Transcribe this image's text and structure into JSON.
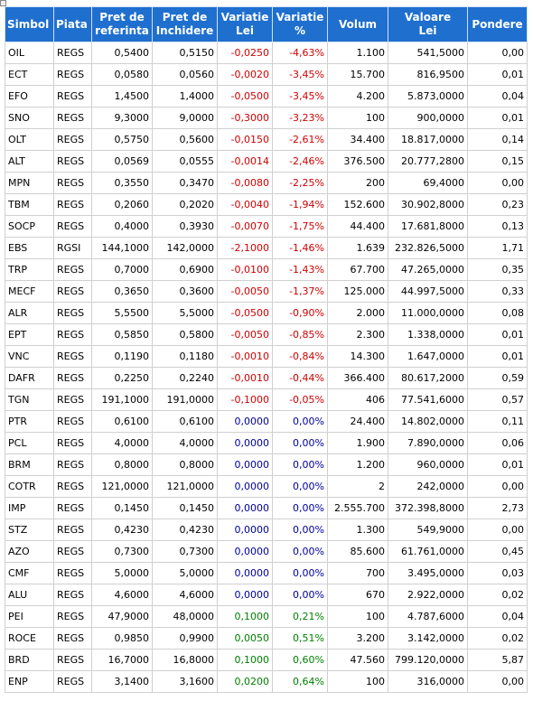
{
  "header": [
    [
      "Simbol"
    ],
    [
      "Piata"
    ],
    [
      "Pret de",
      "referinta"
    ],
    [
      "Pret de",
      "Inchidere"
    ],
    [
      "Variatie",
      "Lei"
    ],
    [
      "Variatie",
      "%"
    ],
    [
      "Volum"
    ],
    [
      "Valoare",
      "Lei"
    ],
    [
      "Pondere"
    ]
  ],
  "rows": [
    [
      "OIL",
      "REGS",
      "0,5400",
      "0,5150",
      "-0,0250",
      "-4,63%",
      "1.100",
      "541,5000",
      "0,00"
    ],
    [
      "ECT",
      "REGS",
      "0,0580",
      "0,0560",
      "-0,0020",
      "-3,45%",
      "15.700",
      "816,9500",
      "0,01"
    ],
    [
      "EFO",
      "REGS",
      "1,4500",
      "1,4000",
      "-0,0500",
      "-3,45%",
      "4.200",
      "5.873,0000",
      "0,04"
    ],
    [
      "SNO",
      "REGS",
      "9,3000",
      "9,0000",
      "-0,3000",
      "-3,23%",
      "100",
      "900,0000",
      "0,01"
    ],
    [
      "OLT",
      "REGS",
      "0,5750",
      "0,5600",
      "-0,0150",
      "-2,61%",
      "34.400",
      "18.817,0000",
      "0,14"
    ],
    [
      "ALT",
      "REGS",
      "0,0569",
      "0,0555",
      "-0,0014",
      "-2,46%",
      "376.500",
      "20.777,2800",
      "0,15"
    ],
    [
      "MPN",
      "REGS",
      "0,3550",
      "0,3470",
      "-0,0080",
      "-2,25%",
      "200",
      "69,4000",
      "0,00"
    ],
    [
      "TBM",
      "REGS",
      "0,2060",
      "0,2020",
      "-0,0040",
      "-1,94%",
      "152.600",
      "30.902,8000",
      "0,23"
    ],
    [
      "SOCP",
      "REGS",
      "0,4000",
      "0,3930",
      "-0,0070",
      "-1,75%",
      "44.400",
      "17.681,8000",
      "0,13"
    ],
    [
      "EBS",
      "RGSI",
      "144,1000",
      "142,0000",
      "-2,1000",
      "-1,46%",
      "1.639",
      "232.826,5000",
      "1,71"
    ],
    [
      "TRP",
      "REGS",
      "0,7000",
      "0,6900",
      "-0,0100",
      "-1,43%",
      "67.700",
      "47.265,0000",
      "0,35"
    ],
    [
      "MECF",
      "REGS",
      "0,3650",
      "0,3600",
      "-0,0050",
      "-1,37%",
      "125.000",
      "44.997,5000",
      "0,33"
    ],
    [
      "ALR",
      "REGS",
      "5,5500",
      "5,5000",
      "-0,0500",
      "-0,90%",
      "2.000",
      "11.000,0000",
      "0,08"
    ],
    [
      "EPT",
      "REGS",
      "0,5850",
      "0,5800",
      "-0,0050",
      "-0,85%",
      "2.300",
      "1.338,0000",
      "0,01"
    ],
    [
      "VNC",
      "REGS",
      "0,1190",
      "0,1180",
      "-0,0010",
      "-0,84%",
      "14.300",
      "1.647,0000",
      "0,01"
    ],
    [
      "DAFR",
      "REGS",
      "0,2250",
      "0,2240",
      "-0,0010",
      "-0,44%",
      "366.400",
      "80.617,2000",
      "0,59"
    ],
    [
      "TGN",
      "REGS",
      "191,1000",
      "191,0000",
      "-0,1000",
      "-0,05%",
      "406",
      "77.541,6000",
      "0,57"
    ],
    [
      "PTR",
      "REGS",
      "0,6100",
      "0,6100",
      "0,0000",
      "0,00%",
      "24.400",
      "14.802,0000",
      "0,11"
    ],
    [
      "PCL",
      "REGS",
      "4,0000",
      "4,0000",
      "0,0000",
      "0,00%",
      "1.900",
      "7.890,0000",
      "0,06"
    ],
    [
      "BRM",
      "REGS",
      "0,8000",
      "0,8000",
      "0,0000",
      "0,00%",
      "1.200",
      "960,0000",
      "0,01"
    ],
    [
      "COTR",
      "REGS",
      "121,0000",
      "121,0000",
      "0,0000",
      "0,00%",
      "2",
      "242,0000",
      "0,00"
    ],
    [
      "IMP",
      "REGS",
      "0,1450",
      "0,1450",
      "0,0000",
      "0,00%",
      "2.555.700",
      "372.398,8000",
      "2,73"
    ],
    [
      "STZ",
      "REGS",
      "0,4230",
      "0,4230",
      "0,0000",
      "0,00%",
      "1.300",
      "549,9000",
      "0,00"
    ],
    [
      "AZO",
      "REGS",
      "0,7300",
      "0,7300",
      "0,0000",
      "0,00%",
      "85.600",
      "61.761,0000",
      "0,45"
    ],
    [
      "CMF",
      "REGS",
      "5,0000",
      "5,0000",
      "0,0000",
      "0,00%",
      "700",
      "3.495,0000",
      "0,03"
    ],
    [
      "ALU",
      "REGS",
      "4,6000",
      "4,6000",
      "0,0000",
      "0,00%",
      "670",
      "2.922,0000",
      "0,02"
    ],
    [
      "PEI",
      "REGS",
      "47,9000",
      "48,0000",
      "0,1000",
      "0,21%",
      "100",
      "4.787,6000",
      "0,04"
    ],
    [
      "ROCE",
      "REGS",
      "0,9850",
      "0,9900",
      "0,0050",
      "0,51%",
      "3.200",
      "3.142,0000",
      "0,02"
    ],
    [
      "BRD",
      "REGS",
      "16,7000",
      "16,8000",
      "0,1000",
      "0,60%",
      "47.560",
      "799.120,0000",
      "5,87"
    ],
    [
      "ENP",
      "REGS",
      "3,1400",
      "3,1600",
      "0,0200",
      "0,64%",
      "100",
      "316,0000",
      "0,00"
    ]
  ]
}
